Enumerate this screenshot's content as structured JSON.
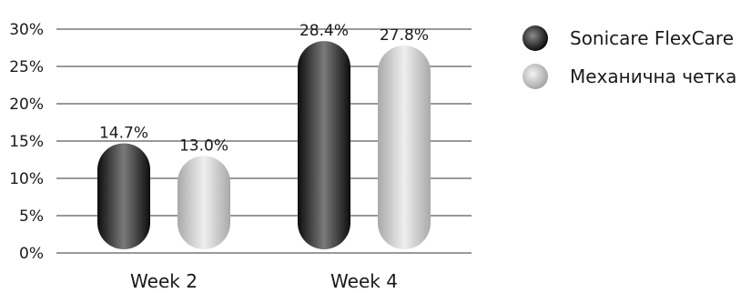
{
  "chart_data": {
    "type": "bar",
    "categories": [
      "Week 2",
      "Week 4"
    ],
    "series": [
      {
        "name": "Sonicare FlexCare",
        "values": [
          14.7,
          28.4
        ],
        "value_labels": [
          "14.7%",
          "28.4%"
        ],
        "color": "#2a2a2a"
      },
      {
        "name": "Механична четка",
        "values": [
          13.0,
          27.8
        ],
        "value_labels": [
          "13.0%",
          "27.8%"
        ],
        "color": "#bdbdbd"
      }
    ],
    "ylim": [
      0,
      30
    ],
    "yticks": [
      0,
      5,
      10,
      15,
      20,
      25,
      30
    ],
    "ytick_labels": [
      "0%",
      "5%",
      "10%",
      "15%",
      "20%",
      "25%",
      "30%"
    ],
    "grid": true,
    "legend_position": "top-right"
  }
}
